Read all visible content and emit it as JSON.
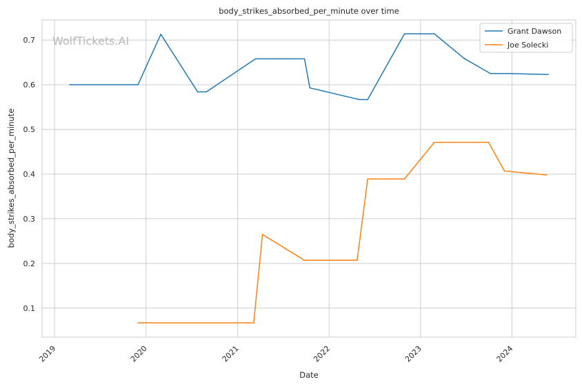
{
  "chart_data": {
    "type": "line",
    "title": "body_strikes_absorbed_per_minute over time",
    "xlabel": "Date",
    "ylabel": "body_strikes_absorbed_per_minute",
    "xlim": [
      "2018-11-12",
      "2024-09-12"
    ],
    "ylim": [
      0.035,
      0.745
    ],
    "x_ticks": [
      "2019",
      "2020",
      "2021",
      "2022",
      "2023",
      "2024"
    ],
    "y_ticks": [
      "0.1",
      "0.2",
      "0.3",
      "0.4",
      "0.5",
      "0.6",
      "0.7"
    ],
    "grid": true,
    "legend_position": "top-right",
    "watermark": "WolfTickets.AI",
    "series": [
      {
        "name": "Grant Dawson",
        "color": "#1f77b4",
        "points": [
          {
            "x": "2019-03-02",
            "y": 0.6
          },
          {
            "x": "2019-11-30",
            "y": 0.6
          },
          {
            "x": "2020-02-29",
            "y": 0.713
          },
          {
            "x": "2020-07-25",
            "y": 0.584
          },
          {
            "x": "2020-08-29",
            "y": 0.584
          },
          {
            "x": "2021-03-13",
            "y": 0.658
          },
          {
            "x": "2021-09-25",
            "y": 0.658
          },
          {
            "x": "2021-10-16",
            "y": 0.593
          },
          {
            "x": "2022-04-30",
            "y": 0.567
          },
          {
            "x": "2022-06-04",
            "y": 0.567
          },
          {
            "x": "2022-10-29",
            "y": 0.714
          },
          {
            "x": "2023-02-25",
            "y": 0.714
          },
          {
            "x": "2023-06-24",
            "y": 0.659
          },
          {
            "x": "2023-10-07",
            "y": 0.625
          },
          {
            "x": "2023-12-16",
            "y": 0.625
          },
          {
            "x": "2024-05-25",
            "y": 0.623
          }
        ]
      },
      {
        "name": "Joe Solecki",
        "color": "#ff7f0e",
        "points": [
          {
            "x": "2019-11-30",
            "y": 0.067
          },
          {
            "x": "2021-03-06",
            "y": 0.067
          },
          {
            "x": "2021-04-10",
            "y": 0.265
          },
          {
            "x": "2021-09-25",
            "y": 0.207
          },
          {
            "x": "2022-04-23",
            "y": 0.207
          },
          {
            "x": "2022-06-04",
            "y": 0.389
          },
          {
            "x": "2022-10-29",
            "y": 0.389
          },
          {
            "x": "2023-02-25",
            "y": 0.471
          },
          {
            "x": "2023-09-30",
            "y": 0.471
          },
          {
            "x": "2023-12-02",
            "y": 0.407
          },
          {
            "x": "2024-05-18",
            "y": 0.398
          }
        ]
      }
    ]
  }
}
